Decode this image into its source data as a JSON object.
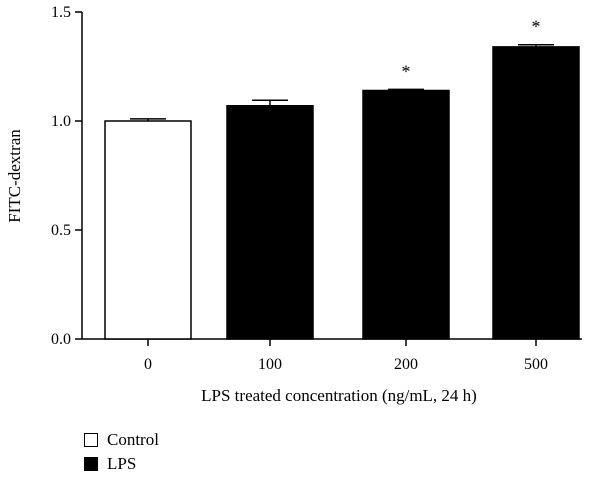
{
  "chart_data": {
    "type": "bar",
    "title": "",
    "xlabel": "LPS treated concentration (ng/mL, 24 h)",
    "ylabel": "FITC-dextran",
    "ylim": [
      0,
      1.5
    ],
    "yticks": [
      "0.0",
      "0.5",
      "1.0",
      "1.5"
    ],
    "ytick_values": [
      0,
      0.5,
      1.0,
      1.5
    ],
    "categories": [
      "0",
      "100",
      "200",
      "500"
    ],
    "values": [
      1.0,
      1.07,
      1.14,
      1.34
    ],
    "errors": [
      0.01,
      0.025,
      0.005,
      0.01
    ],
    "groups": [
      "Control",
      "LPS",
      "LPS",
      "LPS"
    ],
    "significance": [
      "",
      "",
      "*",
      "*"
    ],
    "legend_placement": "bottom-left",
    "grid": false
  },
  "legend": [
    {
      "label": "Control",
      "fill": "#ffffff"
    },
    {
      "label": "LPS",
      "fill": "#000000"
    }
  ],
  "colors": {
    "Control": "#ffffff",
    "LPS": "#000000",
    "axis": "#000000"
  }
}
